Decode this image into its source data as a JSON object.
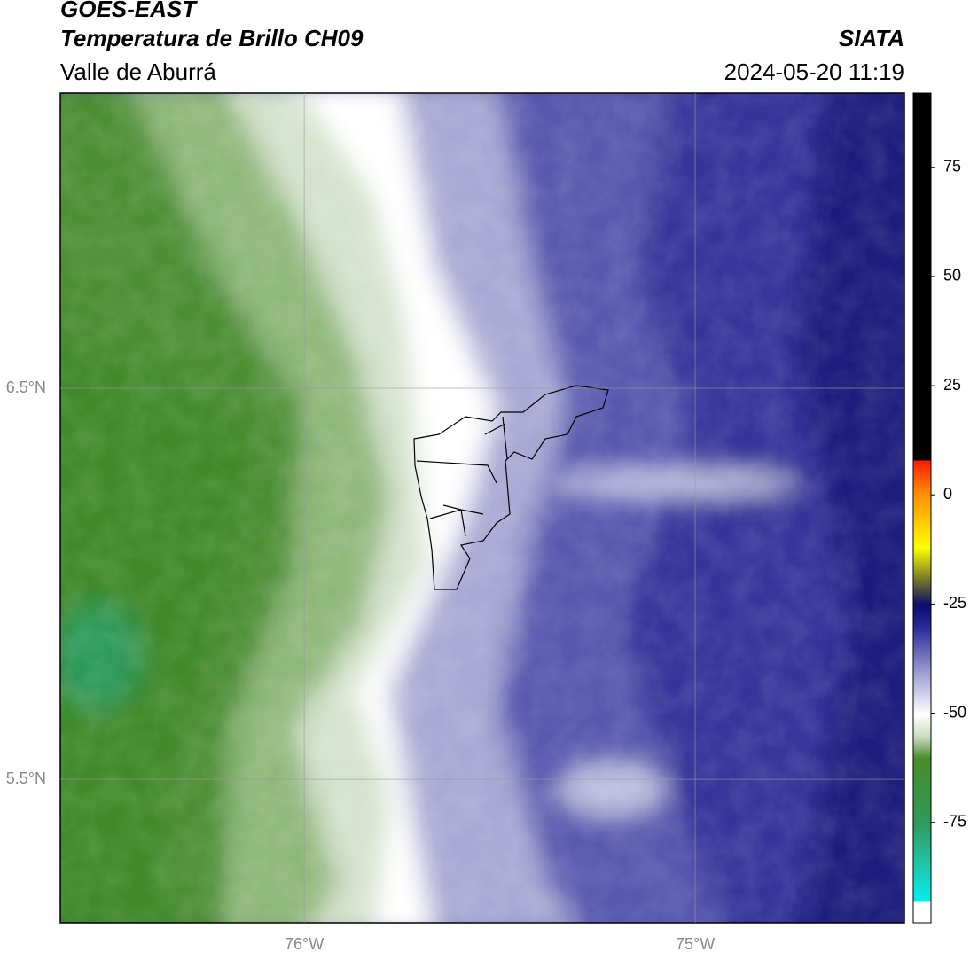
{
  "header": {
    "satellite": "GOES-EAST",
    "product": "Temperatura de Brillo CH09",
    "region": "Valle de Aburrá",
    "agency": "SIATA",
    "timestamp": "2024-05-20 11:19"
  },
  "map": {
    "xlim": [
      -76.624,
      -74.465
    ],
    "ylim": [
      5.133,
      7.255
    ],
    "xticks": [
      {
        "value": -76,
        "label": "76°W"
      },
      {
        "value": -75,
        "label": "75°W"
      }
    ],
    "yticks": [
      {
        "value": 6.5,
        "label": "6.5°N"
      },
      {
        "value": 5.5,
        "label": "5.5°N"
      }
    ],
    "grid": true
  },
  "colorbar": {
    "clim": [
      -98,
      92
    ],
    "ticks": [
      75,
      50,
      25,
      0,
      -25,
      -50,
      -75
    ]
  }
}
